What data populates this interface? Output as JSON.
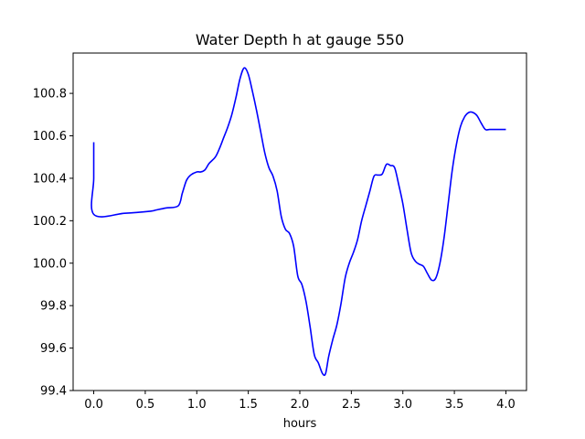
{
  "chart_data": {
    "type": "line",
    "title": "Water Depth h at gauge 550",
    "xlabel": "hours",
    "ylabel": "",
    "xlim": [
      -0.2,
      4.2
    ],
    "ylim": [
      99.4,
      100.99
    ],
    "grid": false,
    "legend": "none",
    "x_ticks": [
      0.0,
      0.5,
      1.0,
      1.5,
      2.0,
      2.5,
      3.0,
      3.5,
      4.0
    ],
    "x_tick_labels": [
      "0.0",
      "0.5",
      "1.0",
      "1.5",
      "2.0",
      "2.5",
      "3.0",
      "3.5",
      "4.0"
    ],
    "y_ticks": [
      99.4,
      99.6,
      99.8,
      100.0,
      100.2,
      100.4,
      100.6,
      100.8
    ],
    "y_tick_labels": [
      "99.4",
      "99.6",
      "99.8",
      "100.0",
      "100.2",
      "100.4",
      "100.6",
      "100.8"
    ],
    "series": [
      {
        "color": "#0000ff",
        "x": [
          0.0,
          0.0,
          0.0,
          0.3,
          0.55,
          0.6,
          0.7,
          0.82,
          0.86,
          0.9,
          0.94,
          1.0,
          1.04,
          1.08,
          1.12,
          1.18,
          1.22,
          1.26,
          1.3,
          1.34,
          1.38,
          1.42,
          1.46,
          1.5,
          1.54,
          1.58,
          1.62,
          1.66,
          1.7,
          1.74,
          1.78,
          1.82,
          1.86,
          1.9,
          1.94,
          1.98,
          2.02,
          2.06,
          2.1,
          2.14,
          2.18,
          2.22,
          2.25,
          2.28,
          2.32,
          2.36,
          2.4,
          2.44,
          2.48,
          2.52,
          2.56,
          2.6,
          2.64,
          2.68,
          2.72,
          2.76,
          2.8,
          2.84,
          2.88,
          2.92,
          2.96,
          3.0,
          3.04,
          3.08,
          3.12,
          3.16,
          3.2,
          3.24,
          3.28,
          3.32,
          3.36,
          3.4,
          3.44,
          3.48,
          3.52,
          3.56,
          3.6,
          3.64,
          3.68,
          3.72,
          3.76,
          3.8,
          3.84,
          3.88,
          3.92,
          3.96,
          4.0
        ],
        "y": [
          100.57,
          100.4,
          100.23,
          100.235,
          100.245,
          100.25,
          100.26,
          100.27,
          100.33,
          100.39,
          100.415,
          100.43,
          100.43,
          100.44,
          100.47,
          100.5,
          100.54,
          100.59,
          100.64,
          100.7,
          100.78,
          100.87,
          100.92,
          100.89,
          100.81,
          100.72,
          100.62,
          100.52,
          100.45,
          100.41,
          100.34,
          100.22,
          100.16,
          100.14,
          100.08,
          99.94,
          99.9,
          99.82,
          99.7,
          99.57,
          99.53,
          99.48,
          99.48,
          99.56,
          99.64,
          99.71,
          99.81,
          99.93,
          100.0,
          100.05,
          100.11,
          100.2,
          100.27,
          100.34,
          100.41,
          100.415,
          100.42,
          100.465,
          100.46,
          100.45,
          100.37,
          100.28,
          100.16,
          100.05,
          100.01,
          99.995,
          99.985,
          99.95,
          99.92,
          99.93,
          100.0,
          100.12,
          100.28,
          100.44,
          100.56,
          100.645,
          100.69,
          100.71,
          100.71,
          100.695,
          100.66,
          100.63,
          100.63,
          100.63,
          100.63,
          100.63,
          100.63
        ]
      }
    ]
  }
}
